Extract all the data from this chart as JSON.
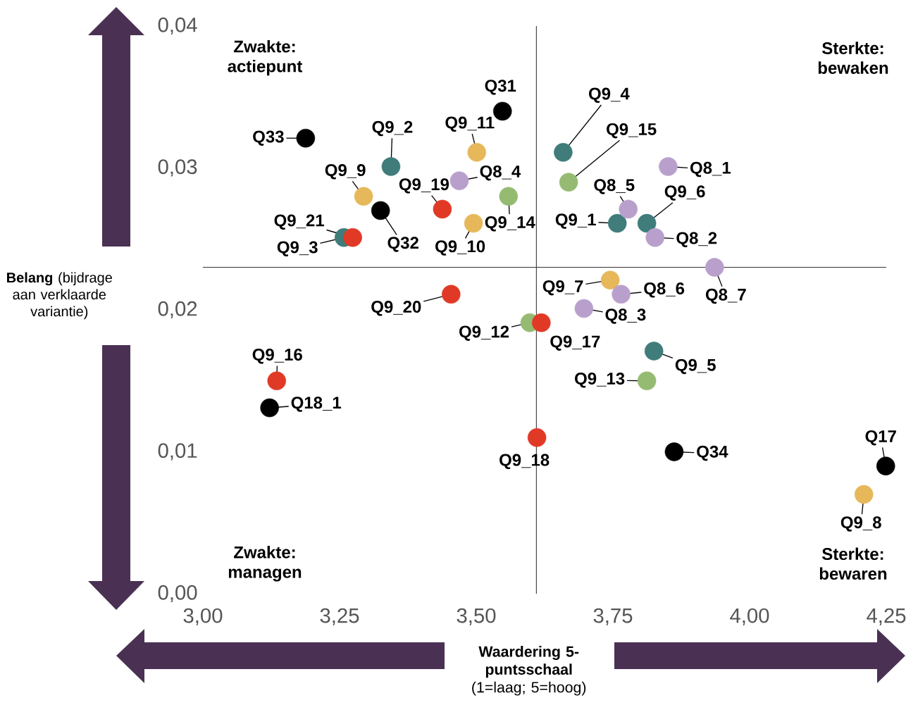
{
  "chart_data": {
    "type": "scatter",
    "xlabel": "**Waardering 5-puntsschaal** (1=laag; 5=hoog)",
    "ylabel": "**Belang** (bijdrage aan verklaarde variantie)",
    "xlim": [
      3,
      4.25
    ],
    "ylim": [
      0,
      0.04
    ],
    "xticks": [
      {
        "value": 3,
        "label": "3,00"
      },
      {
        "value": 3.25,
        "label": "3,25"
      },
      {
        "value": 3.5,
        "label": "3,50"
      },
      {
        "value": 3.75,
        "label": "3,75"
      },
      {
        "value": 4,
        "label": "4,00"
      },
      {
        "value": 4.25,
        "label": "4,25"
      }
    ],
    "yticks": [
      {
        "value": 0,
        "label": "0,00"
      },
      {
        "value": 0.01,
        "label": "0,01"
      },
      {
        "value": 0.02,
        "label": "0,02"
      },
      {
        "value": 0.03,
        "label": "0,03"
      },
      {
        "value": 0.04,
        "label": "0,04"
      }
    ],
    "marker": "circle",
    "ref_lines": [
      {
        "axis": "x",
        "value": 3.61,
        "color": "#333333"
      },
      {
        "axis": "y",
        "value": 0.023,
        "color": "#333333"
      }
    ],
    "series": [
      {
        "color": "#000000",
        "x": [
          3.188,
          3.548,
          3.325,
          3.122,
          3.862,
          4.249
        ],
        "values": [
          0.0321,
          0.034,
          0.027,
          0.0131,
          0.01,
          0.009
        ]
      },
      {
        "color": "#3f7c7a",
        "x": [
          3.344,
          3.258,
          3.659,
          3.758,
          3.812,
          3.825
        ],
        "values": [
          0.0301,
          0.0251,
          0.0311,
          0.0261,
          0.0261,
          0.0171
        ]
      },
      {
        "color": "#e6b85a",
        "x": [
          3.501,
          3.294,
          3.495,
          3.745,
          4.209
        ],
        "values": [
          0.0311,
          0.028,
          0.0261,
          0.0221,
          0.007
        ]
      },
      {
        "color": "#b9a0cc",
        "x": [
          3.469,
          3.851,
          3.778,
          3.827,
          3.936,
          3.765,
          3.697
        ],
        "values": [
          0.0291,
          0.0301,
          0.0271,
          0.0251,
          0.023,
          0.0211,
          0.0201
        ]
      },
      {
        "color": "#95bb72",
        "x": [
          3.559,
          3.669,
          3.598,
          3.812
        ],
        "values": [
          0.028,
          0.029,
          0.0191,
          0.015
        ]
      },
      {
        "color": "#e03a26",
        "x": [
          3.438,
          3.274,
          3.454,
          3.619,
          3.135,
          3.611
        ],
        "values": [
          0.0271,
          0.0251,
          0.0211,
          0.0191,
          0.015,
          0.011
        ]
      }
    ],
    "annotations": [
      {
        "text": "Q33",
        "x": 3.188,
        "y": 0.0321
      },
      {
        "text": "Q31",
        "x": 3.548,
        "y": 0.034
      },
      {
        "text": "Q9_2",
        "x": 3.344,
        "y": 0.0301
      },
      {
        "text": "Q9_11",
        "x": 3.501,
        "y": 0.0311
      },
      {
        "text": "Q9_9",
        "x": 3.294,
        "y": 0.028
      },
      {
        "text": "Q9_19",
        "x": 3.438,
        "y": 0.0271
      },
      {
        "text": "Q8_4",
        "x": 3.469,
        "y": 0.0291
      },
      {
        "text": "Q9_14",
        "x": 3.559,
        "y": 0.028
      },
      {
        "text": "Q32",
        "x": 3.325,
        "y": 0.027
      },
      {
        "text": "Q9_21",
        "x": 3.274,
        "y": 0.0251
      },
      {
        "text": "Q9_3",
        "x": 3.258,
        "y": 0.0251
      },
      {
        "text": "Q9_10",
        "x": 3.495,
        "y": 0.0261
      },
      {
        "text": "Q9_4",
        "x": 3.659,
        "y": 0.0311
      },
      {
        "text": "Q9_15",
        "x": 3.669,
        "y": 0.029
      },
      {
        "text": "Q8_1",
        "x": 3.851,
        "y": 0.0301
      },
      {
        "text": "Q8_5",
        "x": 3.778,
        "y": 0.0271
      },
      {
        "text": "Q9_1",
        "x": 3.758,
        "y": 0.0261
      },
      {
        "text": "Q9_6",
        "x": 3.812,
        "y": 0.0261
      },
      {
        "text": "Q8_2",
        "x": 3.827,
        "y": 0.0251
      },
      {
        "text": "Q8_7",
        "x": 3.936,
        "y": 0.023
      },
      {
        "text": "Q9_7",
        "x": 3.745,
        "y": 0.0221
      },
      {
        "text": "Q8_6",
        "x": 3.765,
        "y": 0.0211
      },
      {
        "text": "Q8_3",
        "x": 3.697,
        "y": 0.0201
      },
      {
        "text": "Q9_20",
        "x": 3.454,
        "y": 0.0211
      },
      {
        "text": "Q9_12",
        "x": 3.598,
        "y": 0.0191
      },
      {
        "text": "Q9_17",
        "x": 3.619,
        "y": 0.0191
      },
      {
        "text": "Q9_5",
        "x": 3.825,
        "y": 0.0171
      },
      {
        "text": "Q9_13",
        "x": 3.812,
        "y": 0.015
      },
      {
        "text": "Q9_16",
        "x": 3.135,
        "y": 0.015
      },
      {
        "text": "Q18_1",
        "x": 3.122,
        "y": 0.0131
      },
      {
        "text": "Q9_18",
        "x": 3.611,
        "y": 0.011
      },
      {
        "text": "Q34",
        "x": 3.862,
        "y": 0.01
      },
      {
        "text": "Q17",
        "x": 4.249,
        "y": 0.009
      },
      {
        "text": "Q9_8",
        "x": 4.209,
        "y": 0.007
      },
      "Zwakte: actiepunt",
      "Sterkte: bewaken",
      "Zwakte: managen",
      "Sterkte: bewaren"
    ]
  }
}
